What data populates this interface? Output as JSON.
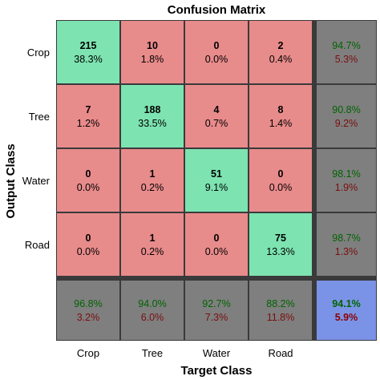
{
  "chart_data": {
    "type": "heatmap",
    "title": "Confusion Matrix",
    "xlabel": "Target Class",
    "ylabel": "Output Class",
    "classes": [
      "Crop",
      "Tree",
      "Water",
      "Road"
    ],
    "cells": [
      [
        {
          "count": "215",
          "pct": "38.3%"
        },
        {
          "count": "10",
          "pct": "1.8%"
        },
        {
          "count": "0",
          "pct": "0.0%"
        },
        {
          "count": "2",
          "pct": "0.4%"
        }
      ],
      [
        {
          "count": "7",
          "pct": "1.2%"
        },
        {
          "count": "188",
          "pct": "33.5%"
        },
        {
          "count": "4",
          "pct": "0.7%"
        },
        {
          "count": "8",
          "pct": "1.4%"
        }
      ],
      [
        {
          "count": "0",
          "pct": "0.0%"
        },
        {
          "count": "1",
          "pct": "0.2%"
        },
        {
          "count": "51",
          "pct": "9.1%"
        },
        {
          "count": "0",
          "pct": "0.0%"
        }
      ],
      [
        {
          "count": "0",
          "pct": "0.0%"
        },
        {
          "count": "1",
          "pct": "0.2%"
        },
        {
          "count": "0",
          "pct": "0.0%"
        },
        {
          "count": "75",
          "pct": "13.3%"
        }
      ]
    ],
    "row_summary": [
      {
        "correct": "94.7%",
        "incorrect": "5.3%"
      },
      {
        "correct": "90.8%",
        "incorrect": "9.2%"
      },
      {
        "correct": "98.1%",
        "incorrect": "1.9%"
      },
      {
        "correct": "98.7%",
        "incorrect": "1.3%"
      }
    ],
    "col_summary": [
      {
        "correct": "96.8%",
        "incorrect": "3.2%"
      },
      {
        "correct": "94.0%",
        "incorrect": "6.0%"
      },
      {
        "correct": "92.7%",
        "incorrect": "7.3%"
      },
      {
        "correct": "88.2%",
        "incorrect": "11.8%"
      }
    ],
    "overall": {
      "correct": "94.1%",
      "incorrect": "5.9%"
    }
  },
  "colors": {
    "correct_cell": "#7DE3B1",
    "incorrect_cell": "#E88B8B",
    "summary_cell": "#7F7F7F",
    "overall_cell": "#7B93E6",
    "correct_text": "#006400",
    "incorrect_text": "#7B0E0E",
    "overall_correct_text": "#006400",
    "overall_incorrect_text": "#8B0000",
    "grid_line": "#3A3A3A"
  }
}
